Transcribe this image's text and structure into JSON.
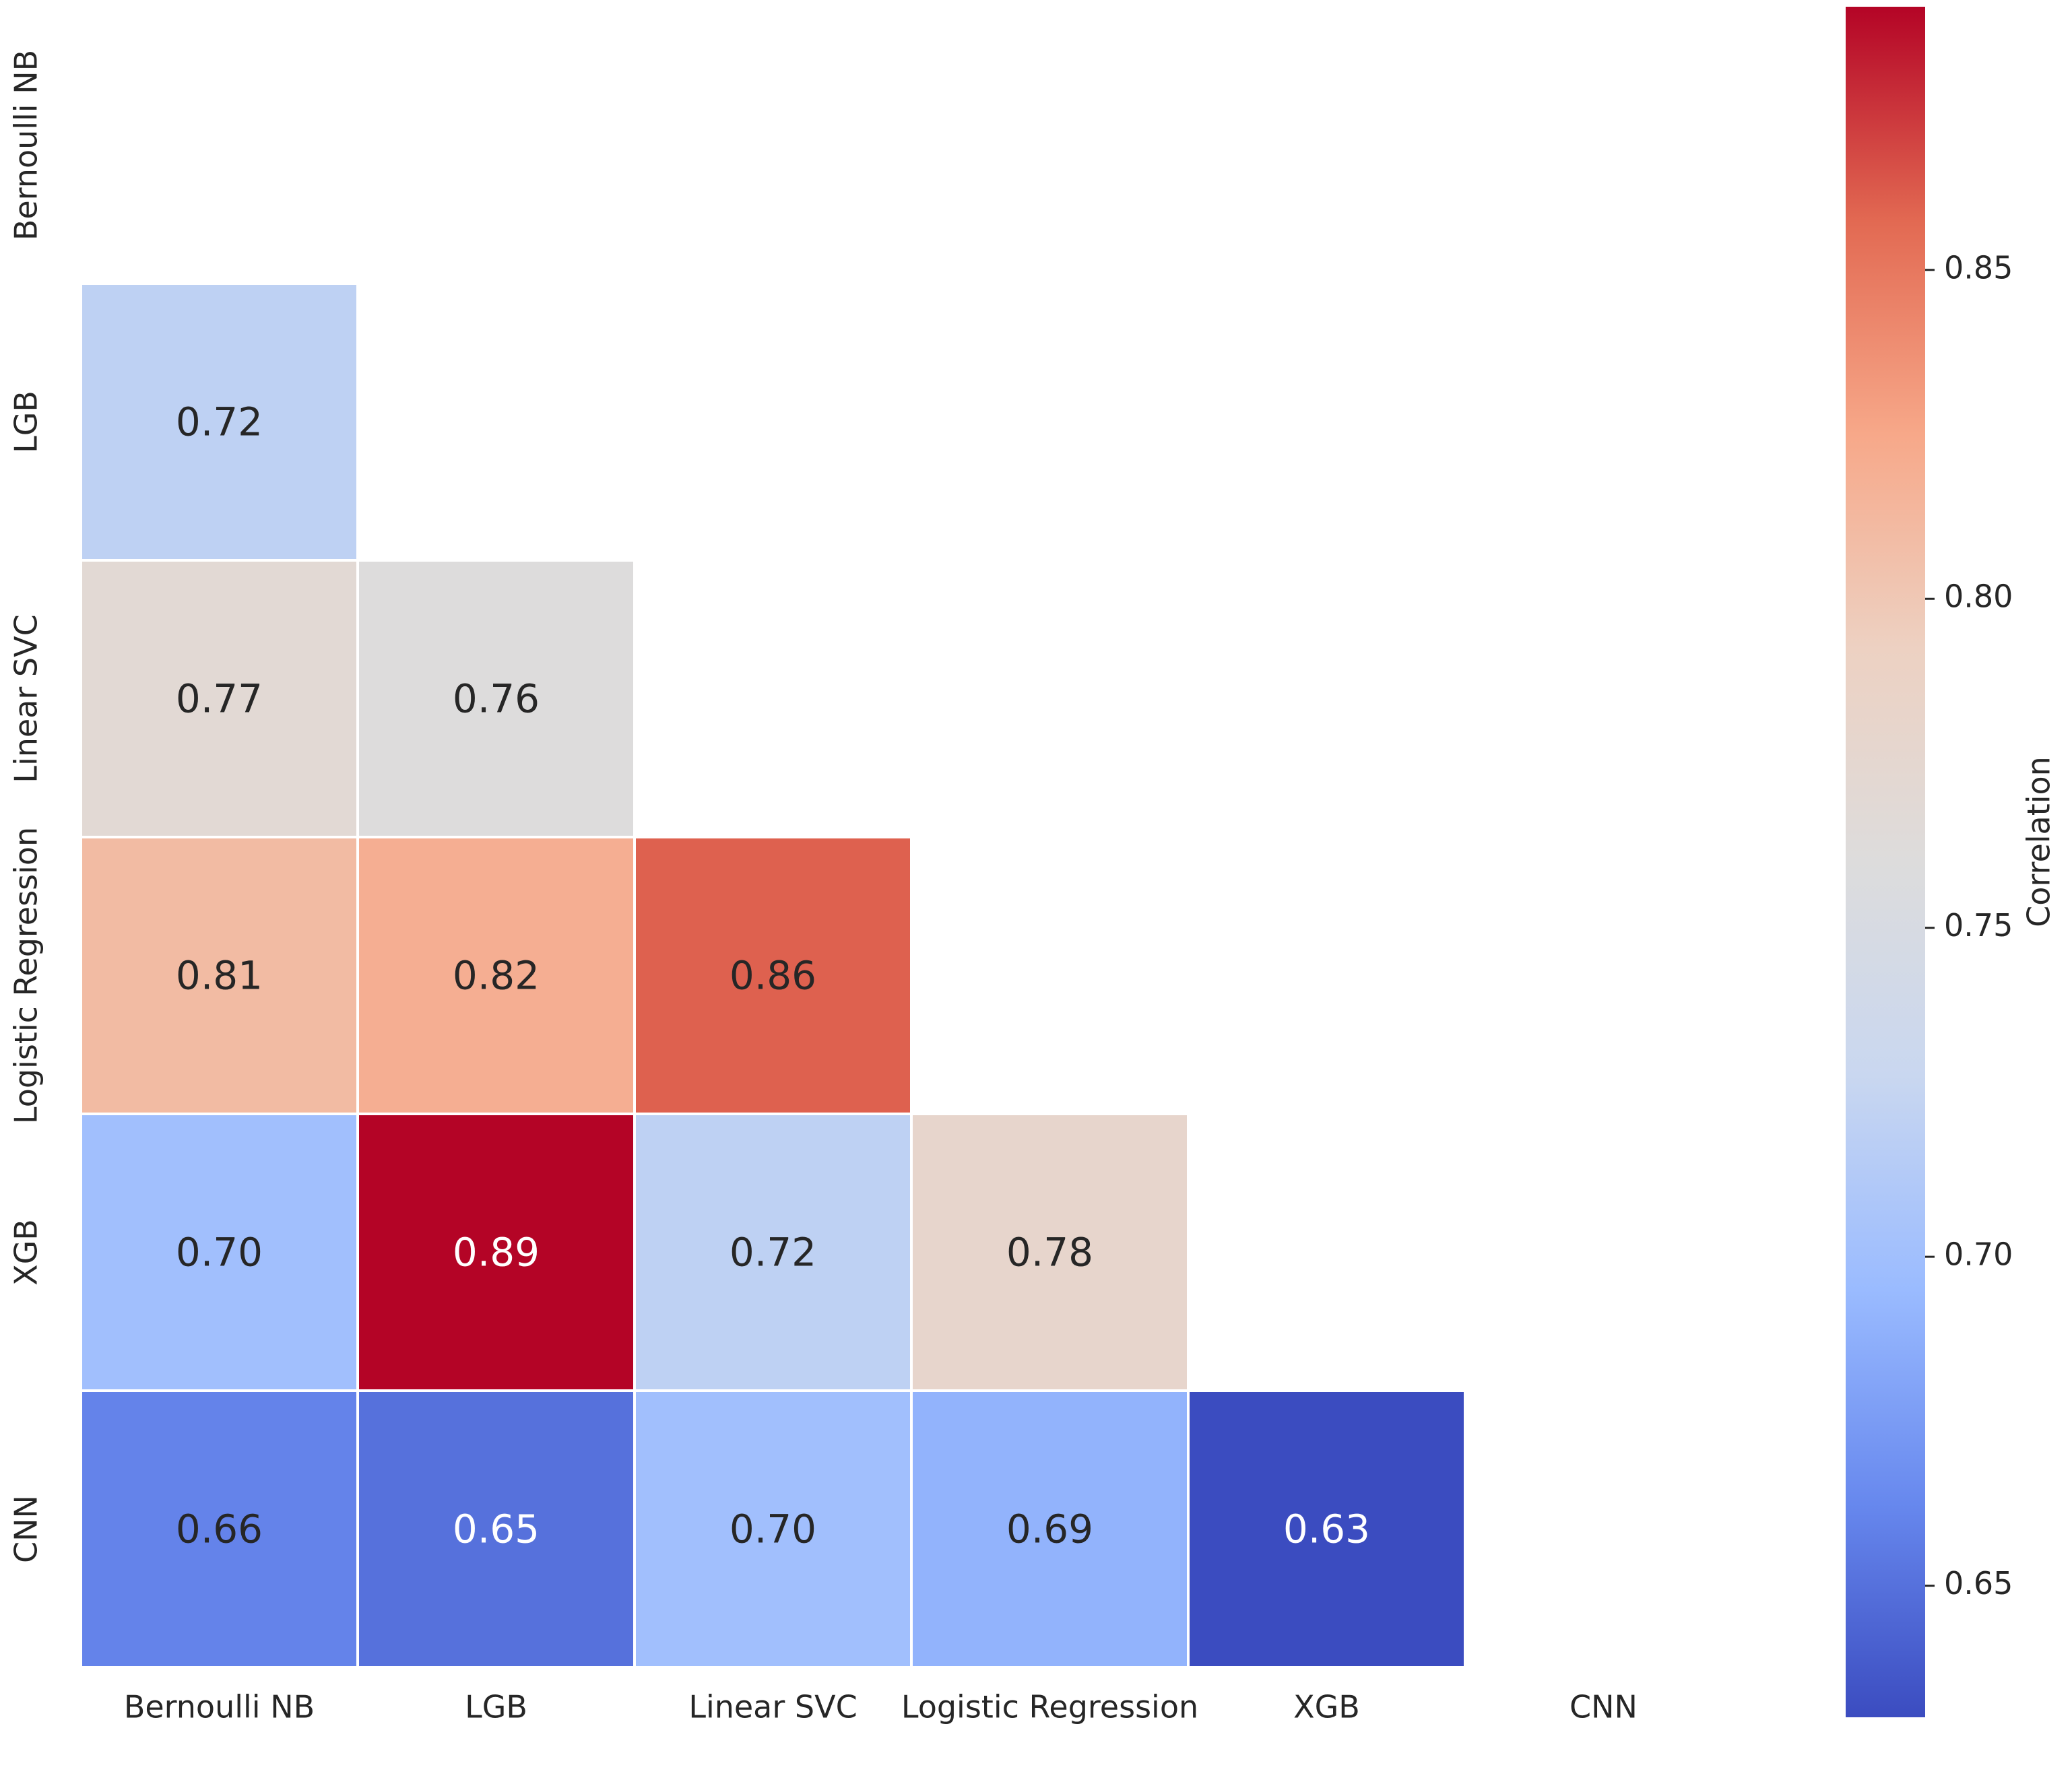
{
  "chart_data": {
    "type": "heatmap",
    "title": "",
    "labels": [
      "Bernoulli NB",
      "LGB",
      "Linear SVC",
      "Logistic Regression",
      "XGB",
      "CNN"
    ],
    "mask": "upper-triangle-and-diagonal",
    "cells": [
      {
        "row": 1,
        "col": 0,
        "value": 0.72,
        "label": "0.72"
      },
      {
        "row": 2,
        "col": 0,
        "value": 0.77,
        "label": "0.77"
      },
      {
        "row": 2,
        "col": 1,
        "value": 0.76,
        "label": "0.76"
      },
      {
        "row": 3,
        "col": 0,
        "value": 0.81,
        "label": "0.81"
      },
      {
        "row": 3,
        "col": 1,
        "value": 0.82,
        "label": "0.82"
      },
      {
        "row": 3,
        "col": 2,
        "value": 0.86,
        "label": "0.86"
      },
      {
        "row": 4,
        "col": 0,
        "value": 0.7,
        "label": "0.70"
      },
      {
        "row": 4,
        "col": 1,
        "value": 0.89,
        "label": "0.89"
      },
      {
        "row": 4,
        "col": 2,
        "value": 0.72,
        "label": "0.72"
      },
      {
        "row": 4,
        "col": 3,
        "value": 0.78,
        "label": "0.78"
      },
      {
        "row": 5,
        "col": 0,
        "value": 0.66,
        "label": "0.66"
      },
      {
        "row": 5,
        "col": 1,
        "value": 0.65,
        "label": "0.65"
      },
      {
        "row": 5,
        "col": 2,
        "value": 0.7,
        "label": "0.70"
      },
      {
        "row": 5,
        "col": 3,
        "value": 0.69,
        "label": "0.69"
      },
      {
        "row": 5,
        "col": 4,
        "value": 0.63,
        "label": "0.63"
      }
    ],
    "colorbar": {
      "label": "Correlation",
      "vmin": 0.63,
      "vmax": 0.89,
      "ticks": [
        {
          "value": 0.65,
          "label": "0.65"
        },
        {
          "value": 0.7,
          "label": "0.70"
        },
        {
          "value": 0.75,
          "label": "0.75"
        },
        {
          "value": 0.8,
          "label": "0.80"
        },
        {
          "value": 0.85,
          "label": "0.85"
        }
      ],
      "colormap": "coolwarm",
      "colormap_stops": [
        "#3b4cc0",
        "#6788ee",
        "#9abbff",
        "#c9d7f0",
        "#dddcdc",
        "#edd1c2",
        "#f7a889",
        "#e26952",
        "#b40426"
      ]
    },
    "text_colors": {
      "dark": "#262626",
      "light": "#ffffff"
    },
    "grid": false,
    "legend": "right"
  }
}
